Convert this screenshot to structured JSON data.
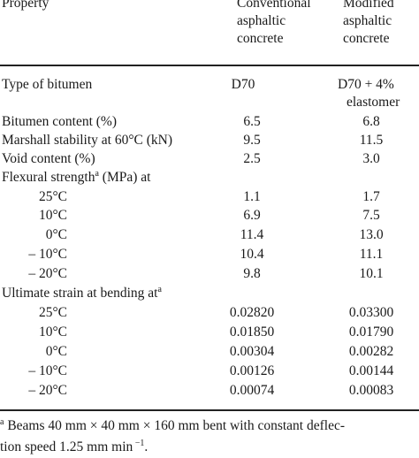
{
  "header": {
    "property": "Property",
    "col1": [
      "Conventional",
      "asphaltic",
      "concrete"
    ],
    "col2": [
      "Modified",
      "asphaltic",
      "concrete"
    ]
  },
  "rows": [
    {
      "label": "Type of bitumen",
      "v1": "D70",
      "v2a": "D70 + 4%",
      "v2b": "elastomer"
    },
    {
      "label": "Bitumen content (%)",
      "v1": "6.5",
      "v2": "6.8"
    },
    {
      "label": "Marshall stability at 60°C (kN)",
      "v1": "9.5",
      "v2": "11.5"
    },
    {
      "label": "Void content (%)",
      "v1": "2.5",
      "v2": "3.0"
    },
    {
      "label": "Flexural strength",
      "sup": "a",
      "label_tail": " (MPa) at"
    },
    {
      "label": "25°C",
      "v1": "1.1",
      "v2": "1.7"
    },
    {
      "label": "10°C",
      "v1": "6.9",
      "v2": "7.5"
    },
    {
      "label": "0°C",
      "v1": "11.4",
      "v2": "13.0"
    },
    {
      "label": "– 10°C",
      "v1": "10.4",
      "v2": "11.1"
    },
    {
      "label": "– 20°C",
      "v1": "9.8",
      "v2": "10.1"
    },
    {
      "label": "Ultimate strain at bending at",
      "sup": "a"
    },
    {
      "label": "25°C",
      "v1": "0.02820",
      "v2": "0.03300"
    },
    {
      "label": "10°C",
      "v1": "0.01850",
      "v2": "0.01790"
    },
    {
      "label": "0°C",
      "v1": "0.00304",
      "v2": "0.00282"
    },
    {
      "label": "– 10°C",
      "v1": "0.00126",
      "v2": "0.00144"
    },
    {
      "label": "– 20°C",
      "v1": "0.00074",
      "v2": "0.00083"
    }
  ],
  "footnote": {
    "mark": "a",
    "line1": " Beams 40 mm × 40 mm × 160 mm bent with constant deflec-",
    "line2": "tion speed 1.25 mm min",
    "line2_sup": " −1",
    "line2_end": "."
  }
}
